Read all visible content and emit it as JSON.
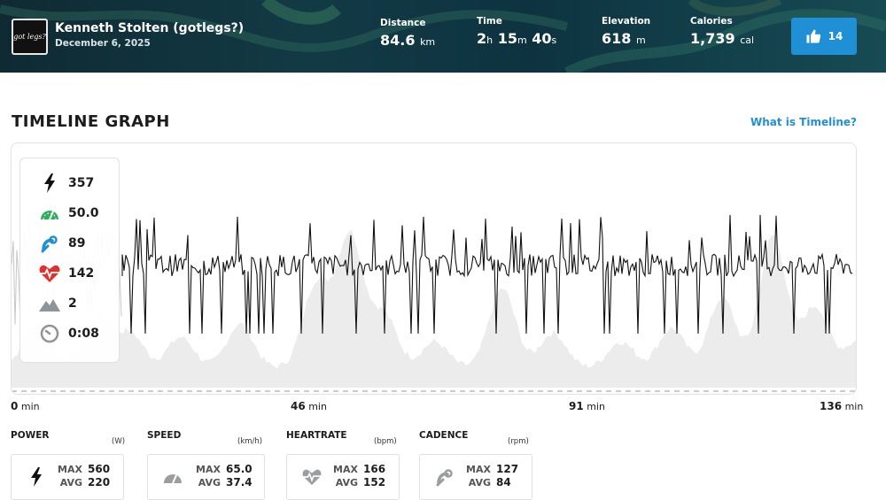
{
  "header": {
    "avatar_text": "got legs?",
    "user_name": "Kenneth Stolten (gotlegs?)",
    "date": "December 6, 2025",
    "stats": [
      {
        "label": "Distance",
        "value": "84.6",
        "unit": "km"
      },
      {
        "label": "Time",
        "h": "2",
        "m": "15",
        "s": "40"
      },
      {
        "label": "Elevation",
        "value": "618",
        "unit": "m"
      },
      {
        "label": "Calories",
        "value": "1,739",
        "unit": "cal"
      }
    ],
    "time_units": {
      "h": "h",
      "m": "m",
      "s": "s"
    },
    "likes": "14"
  },
  "section": {
    "title": "TIMELINE GRAPH",
    "help_link": "What is Timeline?"
  },
  "legend": {
    "power": "357",
    "speed": "50.0",
    "cadence": "89",
    "heartrate": "142",
    "elevation": "2",
    "time": "0:08"
  },
  "axis": [
    {
      "value": "0",
      "unit": "min"
    },
    {
      "value": "46",
      "unit": "min"
    },
    {
      "value": "91",
      "unit": "min"
    },
    {
      "value": "136",
      "unit": "min"
    }
  ],
  "metrics": [
    {
      "name": "POWER",
      "unit": "(W)",
      "max_label": "MAX",
      "max": "560",
      "avg_label": "AVG",
      "avg": "220",
      "icon": "bolt-icon"
    },
    {
      "name": "SPEED",
      "unit": "(km/h)",
      "max_label": "MAX",
      "max": "65.0",
      "avg_label": "AVG",
      "avg": "37.4",
      "icon": "speedometer-icon"
    },
    {
      "name": "HEARTRATE",
      "unit": "(bpm)",
      "max_label": "MAX",
      "max": "166",
      "avg_label": "AVG",
      "avg": "152",
      "icon": "heart-icon"
    },
    {
      "name": "CADENCE",
      "unit": "(rpm)",
      "max_label": "MAX",
      "max": "127",
      "avg_label": "AVG",
      "avg": "84",
      "icon": "cadence-icon"
    }
  ],
  "colors": {
    "accent": "#1f8fd6",
    "speed_icon": "#2fae5a",
    "cadence_icon": "#1f8fd6",
    "heart_icon": "#e0312f",
    "elevation_fill": "#ececec",
    "power_line": "#111111"
  }
}
